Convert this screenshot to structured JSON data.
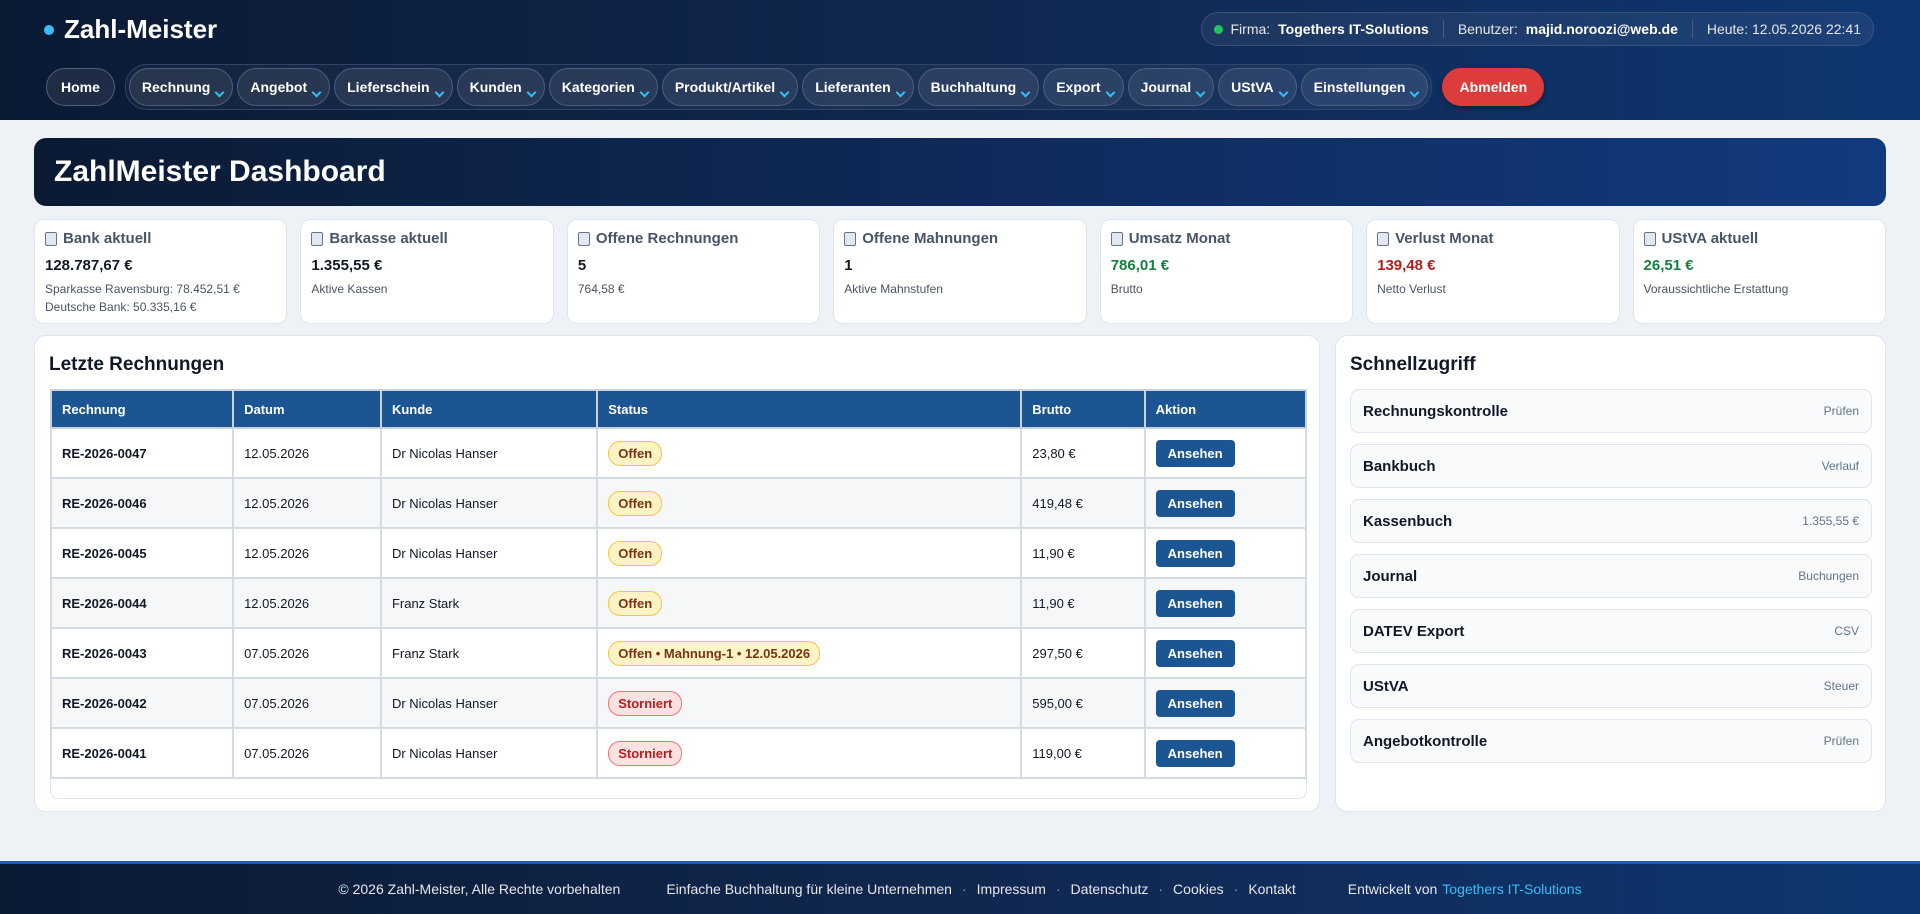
{
  "header": {
    "brand": "Zahl-Meister",
    "status": {
      "firma_label": "Firma:",
      "firma": "Togethers IT-Solutions",
      "benutzer_label": "Benutzer:",
      "benutzer": "majid.noroozi@web.de",
      "heute": "Heute: 12.05.2026 22:41"
    },
    "home": "Home",
    "nav": [
      "Rechnung",
      "Angebot",
      "Lieferschein",
      "Kunden",
      "Kategorien",
      "Produkt/Artikel",
      "Lieferanten",
      "Buchhaltung",
      "Export",
      "Journal",
      "UStVA",
      "Einstellungen"
    ],
    "logout": "Abmelden"
  },
  "dashboard": {
    "title": "ZahlMeister Dashboard"
  },
  "cards": [
    {
      "title": "Bank aktuell",
      "value": "128.787,67 €",
      "lines": [
        "Sparkasse Ravensburg: 78.452,51 €",
        "Deutsche Bank: 50.335,16 €"
      ],
      "color": "#111827"
    },
    {
      "title": "Barkasse aktuell",
      "value": "1.355,55 €",
      "lines": [
        "Aktive Kassen"
      ],
      "color": "#111827"
    },
    {
      "title": "Offene Rechnungen",
      "value": "5",
      "lines": [
        "764,58 €"
      ],
      "color": "#111827"
    },
    {
      "title": "Offene Mahnungen",
      "value": "1",
      "lines": [
        "Aktive Mahnstufen"
      ],
      "color": "#111827"
    },
    {
      "title": "Umsatz Monat",
      "value": "786,01 €",
      "lines": [
        "Brutto"
      ],
      "color": "#15803d"
    },
    {
      "title": "Verlust Monat",
      "value": "139,48 €",
      "lines": [
        "Netto Verlust"
      ],
      "color": "#b91c1c"
    },
    {
      "title": "UStVA aktuell",
      "value": "26,51 €",
      "lines": [
        "Voraussichtliche Erstattung"
      ],
      "color": "#15803d"
    }
  ],
  "invoices": {
    "title": "Letzte Rechnungen",
    "columns": [
      "Rechnung",
      "Datum",
      "Kunde",
      "Status",
      "Brutto",
      "Aktion"
    ],
    "action": "Ansehen",
    "rows": [
      {
        "nr": "RE-2026-0047",
        "datum": "12.05.2026",
        "kunde": "Dr Nicolas Hanser",
        "status": "Offen",
        "status_color": "#fef3c7",
        "brutto": "23,80 €"
      },
      {
        "nr": "RE-2026-0046",
        "datum": "12.05.2026",
        "kunde": "Dr Nicolas Hanser",
        "status": "Offen",
        "status_color": "#fef3c7",
        "brutto": "419,48 €"
      },
      {
        "nr": "RE-2026-0045",
        "datum": "12.05.2026",
        "kunde": "Dr Nicolas Hanser",
        "status": "Offen",
        "status_color": "#fef3c7",
        "brutto": "11,90 €"
      },
      {
        "nr": "RE-2026-0044",
        "datum": "12.05.2026",
        "kunde": "Franz Stark",
        "status": "Offen",
        "status_color": "#fef3c7",
        "brutto": "11,90 €"
      },
      {
        "nr": "RE-2026-0043",
        "datum": "07.05.2026",
        "kunde": "Franz Stark",
        "status": "Offen • Mahnung-1 • 12.05.2026",
        "status_color": "#fef3c7",
        "brutto": "297,50 €"
      },
      {
        "nr": "RE-2026-0042",
        "datum": "07.05.2026",
        "kunde": "Dr Nicolas Hanser",
        "status": "Storniert",
        "status_color": "#fee2e2",
        "brutto": "595,00 €"
      },
      {
        "nr": "RE-2026-0041",
        "datum": "07.05.2026",
        "kunde": "Dr Nicolas Hanser",
        "status": "Storniert",
        "status_color": "#fee2e2",
        "brutto": "119,00 €"
      }
    ]
  },
  "quick": {
    "title": "Schnellzugriff",
    "items": [
      {
        "label": "Rechnungskontrolle",
        "hint": "Prüfen"
      },
      {
        "label": "Bankbuch",
        "hint": "Verlauf"
      },
      {
        "label": "Kassenbuch",
        "hint": "1.355,55 €"
      },
      {
        "label": "Journal",
        "hint": "Buchungen"
      },
      {
        "label": "DATEV Export",
        "hint": "CSV"
      },
      {
        "label": "UStVA",
        "hint": "Steuer"
      },
      {
        "label": "Angebotkontrolle",
        "hint": "Prüfen"
      }
    ]
  },
  "footer": {
    "copyright": "© 2026 Zahl-Meister, Alle Rechte vorbehalten",
    "tagline": "Einfache Buchhaltung für kleine Unternehmen",
    "links": [
      "Impressum",
      "Datenschutz",
      "Cookies",
      "Kontakt"
    ],
    "dev_label": "Entwickelt von",
    "dev": "Togethers IT-Solutions"
  }
}
